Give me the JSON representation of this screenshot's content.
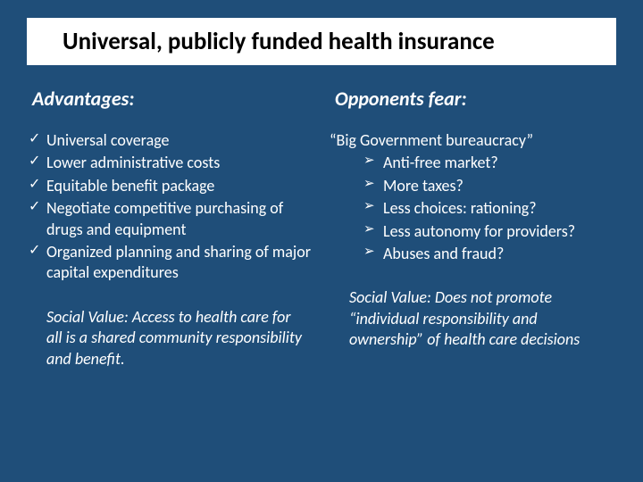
{
  "title": "Universal, publicly funded health insurance",
  "left": {
    "heading": "Advantages:",
    "items": [
      "Universal coverage",
      "Lower administrative costs",
      "Equitable benefit package",
      "Negotiate competitive purchasing of drugs and equipment",
      "Organized planning and sharing of major capital expenditures"
    ],
    "social_value": "Social Value: Access to health care for all is a shared community responsibility and benefit."
  },
  "right": {
    "heading": "Opponents fear:",
    "intro": "“Big Government bureaucracy”",
    "items": [
      "Anti-free market?",
      "More taxes?",
      "Less choices: rationing?",
      "Less autonomy for providers?",
      "Abuses and fraud?"
    ],
    "social_value": "Social Value: Does not promote “individual responsibility and ownership” of health care decisions"
  },
  "style": {
    "background_color": "#1f4e79",
    "title_bg": "#ffffff",
    "title_color": "#000000",
    "text_color": "#ffffff",
    "title_fontsize": 27,
    "heading_fontsize": 22,
    "body_fontsize": 18,
    "check_bullet": "✓",
    "arrow_bullet": "➢"
  }
}
